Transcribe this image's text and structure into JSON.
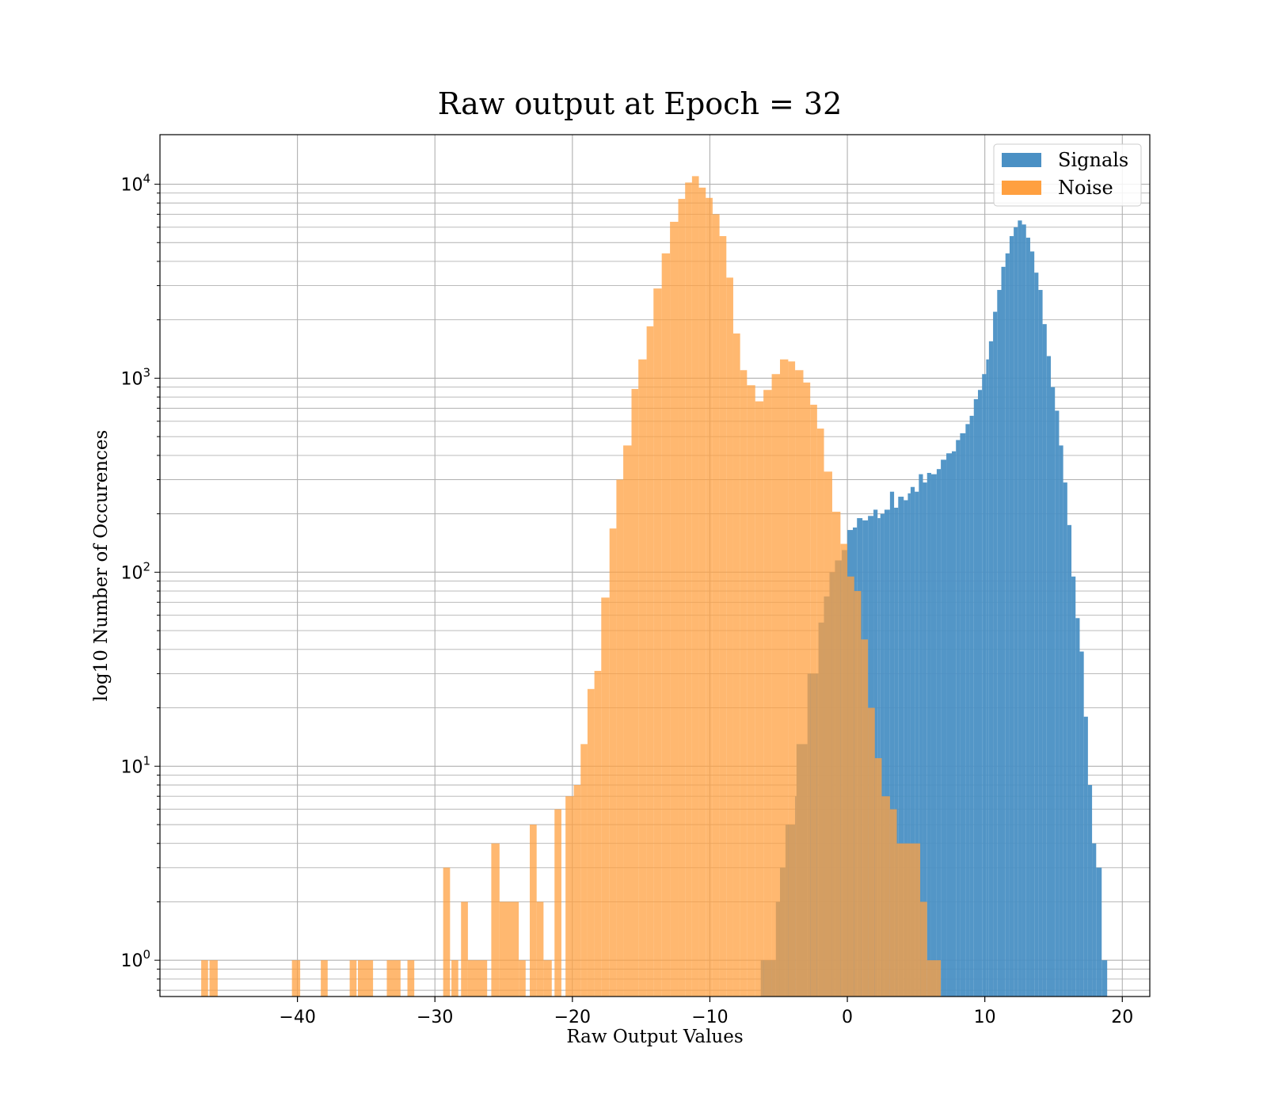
{
  "chart_data": {
    "type": "bar",
    "title": "Raw output at Epoch = 32",
    "xlabel": "Raw Output Values",
    "ylabel": "log10 Number of Occurences",
    "xlim": [
      -50,
      22
    ],
    "ylim": [
      0.65,
      18000
    ],
    "yscale": "log",
    "grid": true,
    "legend_position": "upper right",
    "colors": {
      "signals": "#4a90c4",
      "noise": "#ffa040",
      "overlap": "#e0883a",
      "axis": "#000000",
      "grid": "#b0b0b0"
    },
    "x_ticks": [
      {
        "value": -40,
        "label": "−40"
      },
      {
        "value": -30,
        "label": "−30"
      },
      {
        "value": -20,
        "label": "−20"
      },
      {
        "value": -10,
        "label": "−10"
      },
      {
        "value": 0,
        "label": "0"
      },
      {
        "value": 10,
        "label": "10"
      },
      {
        "value": 20,
        "label": "20"
      }
    ],
    "y_ticks": [
      {
        "value": 1,
        "base": "10",
        "exp": "0"
      },
      {
        "value": 10,
        "base": "10",
        "exp": "1"
      },
      {
        "value": 100,
        "base": "10",
        "exp": "2"
      },
      {
        "value": 1000,
        "base": "10",
        "exp": "3"
      },
      {
        "value": 10000,
        "base": "10",
        "exp": "4"
      }
    ],
    "series": [
      {
        "name": "Signals",
        "key": "signals",
        "bins": [
          [
            -6.3,
            -5.5,
            1
          ],
          [
            -5.5,
            -5.2,
            1
          ],
          [
            -5.2,
            -4.9,
            2
          ],
          [
            -4.9,
            -4.5,
            3
          ],
          [
            -4.5,
            -3.8,
            5
          ],
          [
            -3.8,
            -3.7,
            7
          ],
          [
            -3.7,
            -2.9,
            13
          ],
          [
            -2.9,
            -2.1,
            30
          ],
          [
            -2.1,
            -1.7,
            55
          ],
          [
            -1.7,
            -1.3,
            75
          ],
          [
            -1.3,
            -0.9,
            100
          ],
          [
            -0.9,
            -0.4,
            115
          ],
          [
            -0.4,
            0.0,
            130
          ],
          [
            0.0,
            0.4,
            165
          ],
          [
            0.4,
            0.7,
            170
          ],
          [
            0.7,
            1.1,
            190
          ],
          [
            1.1,
            1.5,
            185
          ],
          [
            1.5,
            1.9,
            195
          ],
          [
            1.9,
            2.2,
            210
          ],
          [
            2.2,
            2.4,
            190
          ],
          [
            2.4,
            2.7,
            200
          ],
          [
            2.7,
            3.1,
            210
          ],
          [
            3.1,
            3.4,
            260
          ],
          [
            3.4,
            3.7,
            215
          ],
          [
            3.7,
            4.1,
            245
          ],
          [
            4.1,
            4.4,
            235
          ],
          [
            4.4,
            4.6,
            255
          ],
          [
            4.6,
            4.9,
            275
          ],
          [
            4.9,
            5.2,
            260
          ],
          [
            5.2,
            5.5,
            320
          ],
          [
            5.5,
            5.8,
            290
          ],
          [
            5.8,
            6.1,
            325
          ],
          [
            6.1,
            6.5,
            320
          ],
          [
            6.5,
            6.8,
            340
          ],
          [
            6.8,
            7.2,
            380
          ],
          [
            7.2,
            7.6,
            410
          ],
          [
            7.6,
            7.9,
            420
          ],
          [
            7.9,
            8.2,
            480
          ],
          [
            8.2,
            8.6,
            520
          ],
          [
            8.6,
            8.9,
            580
          ],
          [
            8.9,
            9.2,
            640
          ],
          [
            9.2,
            9.5,
            780
          ],
          [
            9.5,
            9.8,
            870
          ],
          [
            9.8,
            10.1,
            1050
          ],
          [
            10.1,
            10.3,
            1250
          ],
          [
            10.3,
            10.6,
            1550
          ],
          [
            10.6,
            10.9,
            2200
          ],
          [
            10.9,
            11.2,
            2850
          ],
          [
            11.2,
            11.5,
            3750
          ],
          [
            11.5,
            11.8,
            4400
          ],
          [
            11.8,
            12.1,
            5400
          ],
          [
            12.1,
            12.4,
            6000
          ],
          [
            12.4,
            12.7,
            6500
          ],
          [
            12.7,
            13.0,
            6200
          ],
          [
            13.0,
            13.3,
            5300
          ],
          [
            13.3,
            13.6,
            4500
          ],
          [
            13.6,
            13.9,
            3500
          ],
          [
            13.9,
            14.2,
            2850
          ],
          [
            14.2,
            14.5,
            1900
          ],
          [
            14.5,
            14.8,
            1300
          ],
          [
            14.8,
            15.1,
            900
          ],
          [
            15.1,
            15.4,
            680
          ],
          [
            15.4,
            15.7,
            450
          ],
          [
            15.7,
            16.0,
            290
          ],
          [
            16.0,
            16.3,
            175
          ],
          [
            16.3,
            16.6,
            95
          ],
          [
            16.6,
            16.9,
            58
          ],
          [
            16.9,
            17.2,
            39
          ],
          [
            17.2,
            17.5,
            18
          ],
          [
            17.5,
            17.8,
            8
          ],
          [
            17.8,
            18.1,
            4
          ],
          [
            18.1,
            18.5,
            3
          ],
          [
            18.5,
            18.9,
            1
          ]
        ]
      },
      {
        "name": "Noise",
        "key": "noise",
        "bins": [
          [
            -47.0,
            -46.5,
            1
          ],
          [
            -46.4,
            -45.8,
            1
          ],
          [
            -40.4,
            -39.8,
            1
          ],
          [
            -38.3,
            -37.8,
            1
          ],
          [
            -36.2,
            -35.7,
            1
          ],
          [
            -35.6,
            -34.5,
            1
          ],
          [
            -33.5,
            -32.5,
            1
          ],
          [
            -32.0,
            -31.5,
            1
          ],
          [
            -29.4,
            -28.9,
            3
          ],
          [
            -28.8,
            -28.3,
            1
          ],
          [
            -28.1,
            -27.6,
            2
          ],
          [
            -27.6,
            -26.2,
            1
          ],
          [
            -25.9,
            -25.3,
            4
          ],
          [
            -25.3,
            -23.9,
            2
          ],
          [
            -23.9,
            -23.4,
            1
          ],
          [
            -23.1,
            -22.6,
            5
          ],
          [
            -22.6,
            -22.1,
            2
          ],
          [
            -22.1,
            -21.5,
            1
          ],
          [
            -21.3,
            -20.8,
            6
          ],
          [
            -20.5,
            -19.9,
            7
          ],
          [
            -19.9,
            -19.4,
            8
          ],
          [
            -19.4,
            -18.9,
            13
          ],
          [
            -18.9,
            -18.4,
            25
          ],
          [
            -18.4,
            -17.9,
            31
          ],
          [
            -17.9,
            -17.3,
            74
          ],
          [
            -17.3,
            -16.8,
            168
          ],
          [
            -16.8,
            -16.3,
            300
          ],
          [
            -16.3,
            -15.7,
            450
          ],
          [
            -15.7,
            -15.2,
            880
          ],
          [
            -15.2,
            -14.6,
            1250
          ],
          [
            -14.6,
            -14.1,
            1850
          ],
          [
            -14.1,
            -13.5,
            2900
          ],
          [
            -13.5,
            -12.9,
            4400
          ],
          [
            -12.9,
            -12.3,
            6400
          ],
          [
            -12.3,
            -11.8,
            8400
          ],
          [
            -11.8,
            -11.3,
            10200
          ],
          [
            -11.3,
            -10.8,
            11000
          ],
          [
            -10.8,
            -10.3,
            9600
          ],
          [
            -10.3,
            -9.8,
            8500
          ],
          [
            -9.8,
            -9.3,
            7000
          ],
          [
            -9.3,
            -8.8,
            5400
          ],
          [
            -8.8,
            -8.3,
            3300
          ],
          [
            -8.3,
            -7.8,
            1700
          ],
          [
            -7.8,
            -7.3,
            1100
          ],
          [
            -7.3,
            -6.7,
            920
          ],
          [
            -6.7,
            -6.1,
            760
          ],
          [
            -6.1,
            -5.5,
            870
          ],
          [
            -5.5,
            -4.9,
            1050
          ],
          [
            -4.9,
            -4.3,
            1250
          ],
          [
            -4.3,
            -3.8,
            1220
          ],
          [
            -3.8,
            -3.2,
            1100
          ],
          [
            -3.2,
            -2.7,
            950
          ],
          [
            -2.7,
            -2.2,
            730
          ],
          [
            -2.2,
            -1.7,
            550
          ],
          [
            -1.7,
            -1.1,
            330
          ],
          [
            -1.1,
            -0.5,
            205
          ],
          [
            -0.5,
            0.0,
            140
          ],
          [
            0.0,
            0.5,
            95
          ],
          [
            0.5,
            1.0,
            80
          ],
          [
            1.0,
            1.5,
            45
          ],
          [
            1.5,
            2.0,
            20
          ],
          [
            2.0,
            2.5,
            11
          ],
          [
            2.5,
            3.1,
            7
          ],
          [
            3.1,
            3.6,
            6
          ],
          [
            3.6,
            4.2,
            4
          ],
          [
            4.2,
            5.3,
            4
          ],
          [
            5.3,
            5.8,
            2
          ],
          [
            5.8,
            6.8,
            1
          ]
        ]
      }
    ]
  }
}
